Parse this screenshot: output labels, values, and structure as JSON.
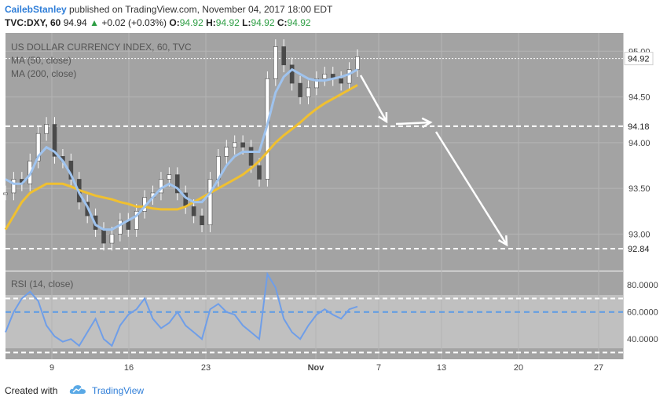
{
  "header": {
    "author": "CailebStanley",
    "published_text": "published on TradingView.com, November 04, 2017 18:00 EDT",
    "symbol": "TVC:DXY, 60",
    "last": "94.94",
    "change": "+0.02 (+0.03%)",
    "o_label": "O:",
    "o": "94.92",
    "h_label": "H:",
    "h": "94.92",
    "l_label": "L:",
    "l": "94.92",
    "c_label": "C:",
    "c": "94.92"
  },
  "legend": {
    "title": "US DOLLAR CURRENCY INDEX, 60, TVC",
    "ma50": "MA (50, close)",
    "ma200": "MA (200, close)",
    "rsi": "RSI (14, close)"
  },
  "price_axis": {
    "ticks": [
      "95.00",
      "94.50",
      "94.00",
      "93.50",
      "93.00"
    ],
    "badges": [
      "94.92",
      "94.18",
      "92.84"
    ]
  },
  "rsi_axis": {
    "ticks": [
      "80.0000",
      "60.0000",
      "40.0000"
    ]
  },
  "time_axis": {
    "ticks": [
      "9",
      "16",
      "23",
      "Nov",
      "7",
      "13",
      "20",
      "27"
    ]
  },
  "footer": {
    "created_with": "Created with",
    "brand": "TradingView"
  },
  "colors": {
    "panel_bg": "#a3a3a3",
    "ma50": "#9fc3ee",
    "ma200": "#f0c030",
    "rsi_line": "#6f9ee8",
    "rsi_band": "#c0c0c0",
    "accent": "#2f7ed8"
  },
  "chart_data": {
    "type": "line",
    "title": "US DOLLAR CURRENCY INDEX, 60, TVC",
    "x_ticks": [
      "9",
      "16",
      "23",
      "Nov",
      "7",
      "13",
      "20",
      "27"
    ],
    "ylim": [
      92.6,
      95.2
    ],
    "y_ticks": [
      95.0,
      94.5,
      94.0,
      93.5,
      93.0
    ],
    "horizontal_levels": [
      94.92,
      94.18,
      92.84
    ],
    "series": [
      {
        "name": "US DOLLAR CURRENCY INDEX, 60, TVC",
        "values": [
          93.45,
          93.6,
          93.55,
          93.8,
          94.1,
          94.2,
          93.85,
          93.8,
          93.6,
          93.35,
          93.2,
          93.05,
          92.9,
          93.0,
          93.15,
          93.05,
          93.25,
          93.4,
          93.45,
          93.6,
          93.65,
          93.45,
          93.3,
          93.2,
          93.1,
          93.6,
          93.85,
          93.95,
          94.0,
          93.95,
          93.75,
          93.6,
          94.7,
          95.05,
          94.85,
          94.65,
          94.5,
          94.6,
          94.7,
          94.75,
          94.7,
          94.65,
          94.8,
          94.94
        ]
      },
      {
        "name": "MA (50, close)",
        "values": [
          93.6,
          93.55,
          93.55,
          93.65,
          93.85,
          93.95,
          93.9,
          93.8,
          93.65,
          93.45,
          93.3,
          93.1,
          93.05,
          93.05,
          93.1,
          93.15,
          93.2,
          93.3,
          93.4,
          93.5,
          93.55,
          93.5,
          93.4,
          93.35,
          93.35,
          93.45,
          93.6,
          93.75,
          93.85,
          93.9,
          93.9,
          93.9,
          94.2,
          94.55,
          94.72,
          94.8,
          94.75,
          94.7,
          94.68,
          94.68,
          94.7,
          94.72,
          94.75,
          94.8
        ]
      },
      {
        "name": "MA (200, close)",
        "values": [
          93.05,
          93.2,
          93.35,
          93.45,
          93.5,
          93.55,
          93.55,
          93.55,
          93.52,
          93.48,
          93.45,
          93.42,
          93.4,
          93.38,
          93.35,
          93.33,
          93.3,
          93.3,
          93.28,
          93.27,
          93.27,
          93.27,
          93.3,
          93.35,
          93.4,
          93.45,
          93.5,
          93.55,
          93.6,
          93.65,
          93.72,
          93.8,
          93.9,
          94.0,
          94.08,
          94.15,
          94.22,
          94.3,
          94.37,
          94.43,
          94.48,
          94.53,
          94.58,
          94.63
        ]
      }
    ],
    "rsi": {
      "name": "RSI (14, close)",
      "ylim": [
        25,
        90
      ],
      "y_ticks": [
        80,
        60,
        40
      ],
      "bands": [
        70,
        30
      ],
      "mid": 60,
      "values": [
        45,
        60,
        70,
        75,
        68,
        50,
        42,
        38,
        40,
        35,
        45,
        55,
        40,
        35,
        50,
        58,
        62,
        70,
        55,
        48,
        52,
        60,
        50,
        45,
        40,
        62,
        66,
        60,
        58,
        50,
        45,
        40,
        88,
        78,
        55,
        45,
        40,
        50,
        58,
        62,
        58,
        55,
        62,
        64
      ]
    }
  }
}
